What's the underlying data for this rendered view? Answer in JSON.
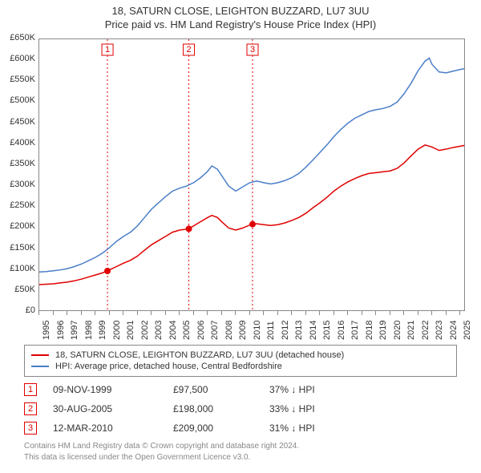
{
  "title": "18, SATURN CLOSE, LEIGHTON BUZZARD, LU7 3UU",
  "subtitle": "Price paid vs. HM Land Registry's House Price Index (HPI)",
  "chart": {
    "type": "line",
    "background_color": "#ffffff",
    "border_color": "#888888",
    "y_axis": {
      "min": 0,
      "max": 650000,
      "step": 50000,
      "tick_labels": [
        "£0",
        "£50K",
        "£100K",
        "£150K",
        "£200K",
        "£250K",
        "£300K",
        "£350K",
        "£400K",
        "£450K",
        "£500K",
        "£550K",
        "£600K",
        "£650K"
      ],
      "label_fontsize": 11
    },
    "x_axis": {
      "min": 1995,
      "max": 2025.4,
      "tick_years": [
        1995,
        1996,
        1997,
        1998,
        1999,
        2000,
        2001,
        2002,
        2003,
        2004,
        2005,
        2006,
        2007,
        2008,
        2009,
        2010,
        2011,
        2012,
        2013,
        2014,
        2015,
        2016,
        2017,
        2018,
        2019,
        2020,
        2021,
        2022,
        2023,
        2024,
        2025
      ],
      "label_fontsize": 11
    },
    "reference_lines": [
      {
        "index": 1,
        "x": 1999.86,
        "color": "#e10000",
        "label": "1"
      },
      {
        "index": 2,
        "x": 2005.66,
        "color": "#e10000",
        "label": "2"
      },
      {
        "index": 3,
        "x": 2010.2,
        "color": "#e10000",
        "label": "3"
      }
    ],
    "series": [
      {
        "name": "property-price",
        "label": "18, SATURN CLOSE, LEIGHTON BUZZARD, LU7 3UU (detached house)",
        "color": "#e10000",
        "line_width": 1.5,
        "points": [
          [
            1995.0,
            65000
          ],
          [
            1995.5,
            66000
          ],
          [
            1996.0,
            67000
          ],
          [
            1996.5,
            69000
          ],
          [
            1997.0,
            71000
          ],
          [
            1997.5,
            74000
          ],
          [
            1998.0,
            78000
          ],
          [
            1998.5,
            83000
          ],
          [
            1999.0,
            88000
          ],
          [
            1999.5,
            93000
          ],
          [
            1999.86,
            97500
          ],
          [
            2000.0,
            100000
          ],
          [
            2000.5,
            108000
          ],
          [
            2001.0,
            116000
          ],
          [
            2001.5,
            123000
          ],
          [
            2002.0,
            133000
          ],
          [
            2002.5,
            147000
          ],
          [
            2003.0,
            160000
          ],
          [
            2003.5,
            170000
          ],
          [
            2004.0,
            180000
          ],
          [
            2004.5,
            190000
          ],
          [
            2005.0,
            195000
          ],
          [
            2005.66,
            198000
          ],
          [
            2006.0,
            205000
          ],
          [
            2006.5,
            215000
          ],
          [
            2007.0,
            225000
          ],
          [
            2007.3,
            230000
          ],
          [
            2007.7,
            225000
          ],
          [
            2008.0,
            215000
          ],
          [
            2008.5,
            200000
          ],
          [
            2009.0,
            195000
          ],
          [
            2009.5,
            200000
          ],
          [
            2010.0,
            207000
          ],
          [
            2010.2,
            209000
          ],
          [
            2010.5,
            210000
          ],
          [
            2011.0,
            208000
          ],
          [
            2011.5,
            206000
          ],
          [
            2012.0,
            208000
          ],
          [
            2012.5,
            212000
          ],
          [
            2013.0,
            218000
          ],
          [
            2013.5,
            225000
          ],
          [
            2014.0,
            235000
          ],
          [
            2014.5,
            248000
          ],
          [
            2015.0,
            260000
          ],
          [
            2015.5,
            273000
          ],
          [
            2016.0,
            288000
          ],
          [
            2016.5,
            300000
          ],
          [
            2017.0,
            310000
          ],
          [
            2017.5,
            318000
          ],
          [
            2018.0,
            325000
          ],
          [
            2018.5,
            330000
          ],
          [
            2019.0,
            332000
          ],
          [
            2019.5,
            334000
          ],
          [
            2020.0,
            336000
          ],
          [
            2020.5,
            342000
          ],
          [
            2021.0,
            355000
          ],
          [
            2021.5,
            372000
          ],
          [
            2022.0,
            388000
          ],
          [
            2022.5,
            398000
          ],
          [
            2023.0,
            393000
          ],
          [
            2023.5,
            385000
          ],
          [
            2024.0,
            388000
          ],
          [
            2024.5,
            392000
          ],
          [
            2025.0,
            395000
          ],
          [
            2025.3,
            397000
          ]
        ]
      },
      {
        "name": "hpi",
        "label": "HPI: Average price, detached house, Central Bedfordshire",
        "color": "#4a7ec8",
        "line_width": 1.5,
        "points": [
          [
            1995.0,
            95000
          ],
          [
            1995.5,
            96000
          ],
          [
            1996.0,
            98000
          ],
          [
            1996.5,
            100000
          ],
          [
            1997.0,
            103000
          ],
          [
            1997.5,
            108000
          ],
          [
            1998.0,
            114000
          ],
          [
            1998.5,
            122000
          ],
          [
            1999.0,
            130000
          ],
          [
            1999.5,
            140000
          ],
          [
            2000.0,
            153000
          ],
          [
            2000.5,
            168000
          ],
          [
            2001.0,
            180000
          ],
          [
            2001.5,
            190000
          ],
          [
            2002.0,
            205000
          ],
          [
            2002.5,
            225000
          ],
          [
            2003.0,
            245000
          ],
          [
            2003.5,
            260000
          ],
          [
            2004.0,
            275000
          ],
          [
            2004.5,
            288000
          ],
          [
            2005.0,
            295000
          ],
          [
            2005.5,
            300000
          ],
          [
            2006.0,
            308000
          ],
          [
            2006.5,
            320000
          ],
          [
            2007.0,
            335000
          ],
          [
            2007.3,
            348000
          ],
          [
            2007.7,
            340000
          ],
          [
            2008.0,
            325000
          ],
          [
            2008.5,
            300000
          ],
          [
            2009.0,
            288000
          ],
          [
            2009.5,
            298000
          ],
          [
            2010.0,
            308000
          ],
          [
            2010.5,
            312000
          ],
          [
            2011.0,
            308000
          ],
          [
            2011.5,
            305000
          ],
          [
            2012.0,
            308000
          ],
          [
            2012.5,
            313000
          ],
          [
            2013.0,
            320000
          ],
          [
            2013.5,
            330000
          ],
          [
            2014.0,
            345000
          ],
          [
            2014.5,
            362000
          ],
          [
            2015.0,
            380000
          ],
          [
            2015.5,
            398000
          ],
          [
            2016.0,
            418000
          ],
          [
            2016.5,
            435000
          ],
          [
            2017.0,
            450000
          ],
          [
            2017.5,
            462000
          ],
          [
            2018.0,
            470000
          ],
          [
            2018.5,
            478000
          ],
          [
            2019.0,
            482000
          ],
          [
            2019.5,
            485000
          ],
          [
            2020.0,
            490000
          ],
          [
            2020.5,
            500000
          ],
          [
            2021.0,
            520000
          ],
          [
            2021.5,
            545000
          ],
          [
            2022.0,
            575000
          ],
          [
            2022.5,
            598000
          ],
          [
            2022.8,
            605000
          ],
          [
            2023.0,
            590000
          ],
          [
            2023.5,
            572000
          ],
          [
            2024.0,
            570000
          ],
          [
            2024.5,
            574000
          ],
          [
            2025.0,
            578000
          ],
          [
            2025.3,
            580000
          ]
        ]
      }
    ],
    "sale_markers": [
      {
        "x": 1999.86,
        "y": 97500,
        "color": "#e10000",
        "radius": 4
      },
      {
        "x": 2005.66,
        "y": 198000,
        "color": "#e10000",
        "radius": 4
      },
      {
        "x": 2010.2,
        "y": 209000,
        "color": "#e10000",
        "radius": 4
      }
    ]
  },
  "legend": {
    "items": [
      {
        "color": "#e10000",
        "label": "18, SATURN CLOSE, LEIGHTON BUZZARD, LU7 3UU (detached house)"
      },
      {
        "color": "#4a7ec8",
        "label": "HPI: Average price, detached house, Central Bedfordshire"
      }
    ]
  },
  "transactions": [
    {
      "marker": "1",
      "color": "#e10000",
      "date": "09-NOV-1999",
      "price": "£97,500",
      "diff": "37% ↓ HPI"
    },
    {
      "marker": "2",
      "color": "#e10000",
      "date": "30-AUG-2005",
      "price": "£198,000",
      "diff": "33% ↓ HPI"
    },
    {
      "marker": "3",
      "color": "#e10000",
      "date": "12-MAR-2010",
      "price": "£209,000",
      "diff": "31% ↓ HPI"
    }
  ],
  "footer": {
    "line1": "Contains HM Land Registry data © Crown copyright and database right 2024.",
    "line2": "This data is licensed under the Open Government Licence v3.0."
  }
}
